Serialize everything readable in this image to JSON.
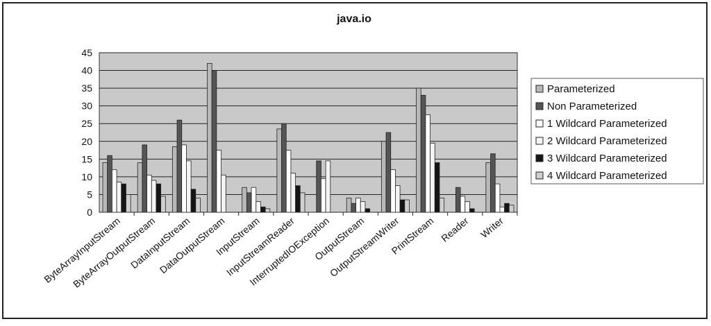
{
  "chart_data": {
    "type": "bar",
    "title": "java.io",
    "categories": [
      "ByteArrayInputStream",
      "ByteArrayOutputStream",
      "DataInputStream",
      "DataOutputStream",
      "InputStream",
      "InputStreamReader",
      "InterruptedIOException",
      "OutputStream",
      "OutputStreamWriter",
      "PrintStream",
      "Reader",
      "Writer"
    ],
    "series": [
      {
        "name": "Parameterized",
        "color": "#b8b8b8",
        "values": [
          14,
          14,
          18.5,
          42,
          7,
          23.5,
          0,
          4,
          20,
          35,
          0,
          14
        ]
      },
      {
        "name": "Non Parameterized",
        "color": "#555555",
        "values": [
          16,
          19,
          26,
          40,
          5.5,
          25,
          14.5,
          2.5,
          22.5,
          33,
          7,
          16.5
        ]
      },
      {
        "name": "1 Wildcard Parameterized",
        "color": "#ffffff",
        "values": [
          12,
          10.5,
          19,
          17.5,
          7,
          17.5,
          9.5,
          4,
          12,
          27.5,
          4.5,
          8
        ]
      },
      {
        "name": "2 Wildcard Parameterized",
        "color": "#f4f4f4",
        "values": [
          8.5,
          9,
          14.5,
          10.5,
          3,
          11,
          14.5,
          3,
          7.5,
          19.5,
          3,
          1.5
        ]
      },
      {
        "name": "3 Wildcard Parameterized",
        "color": "#151515",
        "values": [
          8,
          8,
          6.5,
          0,
          1.5,
          7.5,
          0,
          1,
          3.5,
          14,
          1,
          2.5
        ]
      },
      {
        "name": "4 Wildcard Parameterized",
        "color": "#cfcfcf",
        "values": [
          5,
          4.5,
          4,
          0,
          1,
          5.5,
          0,
          0,
          3.5,
          4,
          0,
          2
        ]
      }
    ],
    "ylim": [
      0,
      45
    ],
    "yticks": [
      0,
      5,
      10,
      15,
      20,
      25,
      30,
      35,
      40,
      45
    ],
    "grid": true,
    "legend": "right"
  }
}
